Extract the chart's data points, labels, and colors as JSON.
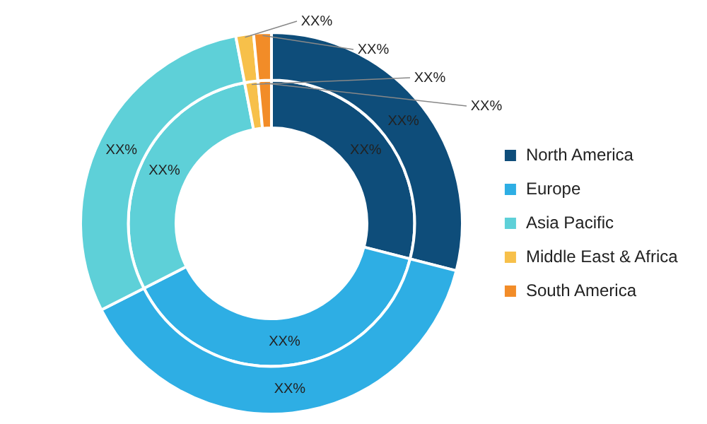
{
  "chart_data": {
    "type": "donut",
    "categories": [
      "North America",
      "Europe",
      "Asia Pacific",
      "Middle East & Africa",
      "South America"
    ],
    "colors": [
      "#0e4d7a",
      "#2eaee4",
      "#5ed0d8",
      "#f7c04a",
      "#f28c28"
    ],
    "series": [
      {
        "values": [
          29,
          38.5,
          29.5,
          1.5,
          1.5
        ],
        "value_labels": [
          "XX%",
          "XX%",
          "XX%",
          "XX%",
          "XX%"
        ]
      },
      {
        "values": [
          29,
          38.5,
          29.5,
          1.5,
          1.5
        ],
        "value_labels": [
          "XX%",
          "XX%",
          "XX%",
          "XX%",
          "XX%"
        ]
      }
    ],
    "legend": "right"
  }
}
